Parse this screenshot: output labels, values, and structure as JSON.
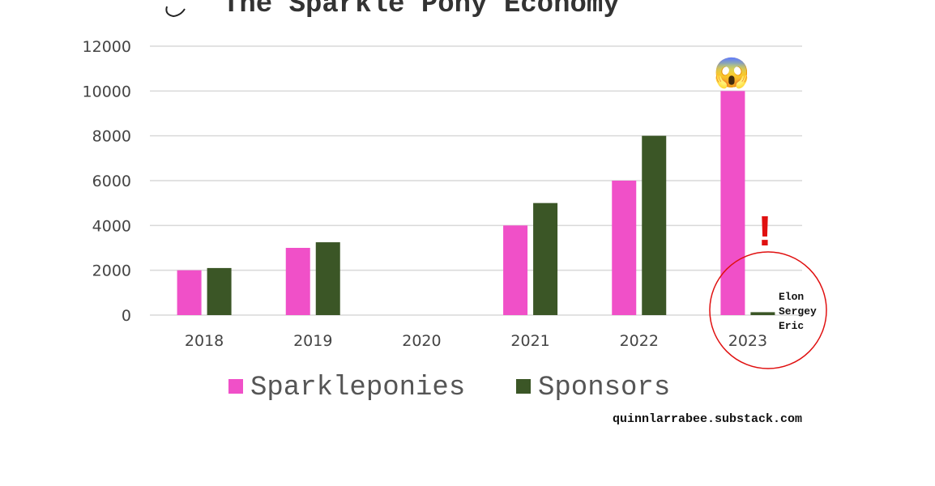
{
  "chart_data": {
    "type": "bar",
    "title": "The Sparkle Pony Economy",
    "categories": [
      "2018",
      "2019",
      "2020",
      "2021",
      "2022",
      "2023"
    ],
    "series": [
      {
        "name": "Sparkleponies",
        "color": "#f050c8",
        "values": [
          2000,
          3000,
          0,
          4000,
          6000,
          10000
        ]
      },
      {
        "name": "Sponsors",
        "color": "#3b5626",
        "values": [
          2100,
          3250,
          0,
          5000,
          8000,
          130
        ]
      }
    ],
    "ylim": [
      0,
      12000
    ],
    "yticks": [
      0,
      2000,
      4000,
      6000,
      8000,
      10000,
      12000
    ],
    "grid": true,
    "legend": "bottom",
    "annotations": {
      "scream_emoji": "😱",
      "exclamation": "!",
      "names": [
        "Elon",
        "Sergey",
        "Eric"
      ],
      "highlight_circle": "2023"
    }
  },
  "credit": "quinnlarrabee.substack.com",
  "colors": {
    "grid": "#d9d9d9",
    "circle": "#e01010"
  },
  "icons": {
    "title_glyph": "swirl-glyph"
  }
}
